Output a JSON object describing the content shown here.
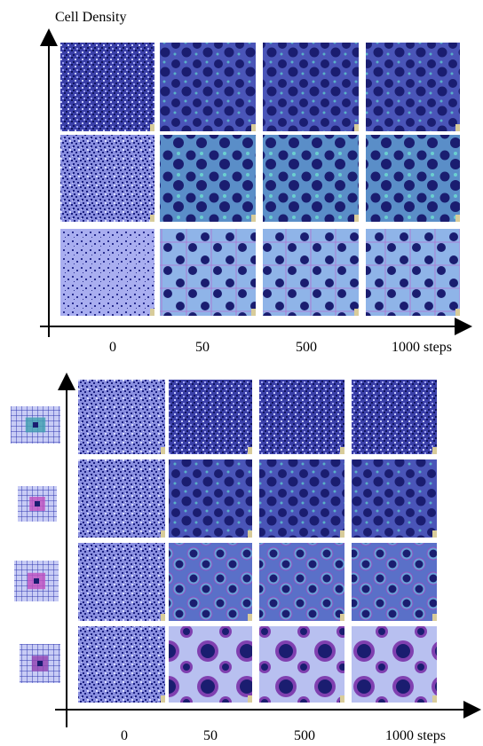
{
  "top": {
    "title": "Cell Density",
    "x_labels": [
      "0",
      "50",
      "500",
      "1000 steps"
    ]
  },
  "bottom": {
    "x_labels": [
      "0",
      "50",
      "500",
      "1000 steps"
    ]
  }
}
